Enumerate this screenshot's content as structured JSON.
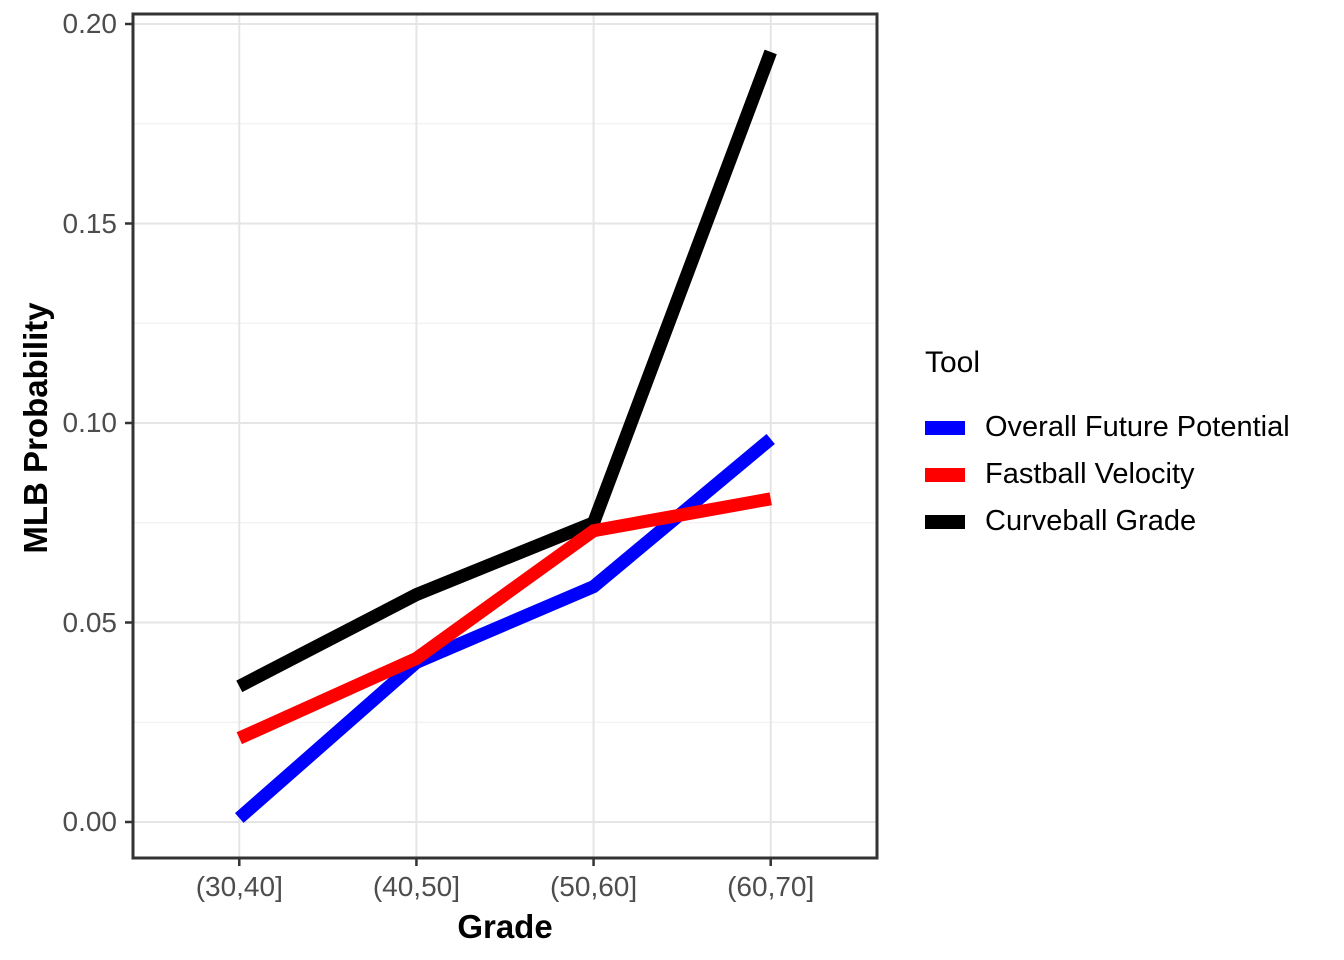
{
  "chart_data": {
    "type": "line",
    "title": "",
    "xlabel": "Grade",
    "ylabel": "MLB Probability",
    "categories": [
      "(30,40]",
      "(40,50]",
      "(50,60]",
      "(60,70]"
    ],
    "series": [
      {
        "name": "Overall Future Potential",
        "color": "#0000FF",
        "values": [
          0.001,
          0.04,
          0.059,
          0.096
        ]
      },
      {
        "name": "Fastball Velocity",
        "color": "#FF0000",
        "values": [
          0.021,
          0.041,
          0.073,
          0.081
        ]
      },
      {
        "name": "Curveball Grade",
        "color": "#000000",
        "values": [
          0.034,
          0.057,
          0.075,
          0.193
        ]
      }
    ],
    "y_ticks": [
      "0.00",
      "0.05",
      "0.10",
      "0.15",
      "0.20"
    ],
    "y_tick_values": [
      0.0,
      0.05,
      0.1,
      0.15,
      0.2
    ],
    "y_minor_values": [
      0.025,
      0.075,
      0.125,
      0.175
    ],
    "ylim": [
      -0.009,
      0.2025
    ],
    "grid": "major+minor",
    "legend_position": "right"
  },
  "legend": {
    "title": "Tool"
  },
  "axes": {
    "x_title": "Grade",
    "y_title": "MLB Probability"
  },
  "colors": {
    "panel_border": "#333333",
    "tick_mark": "#333333",
    "tick_label": "#4d4d4d",
    "grid_major": "#e5e5e5",
    "grid_minor": "#f0f0f0",
    "background": "#ffffff"
  }
}
